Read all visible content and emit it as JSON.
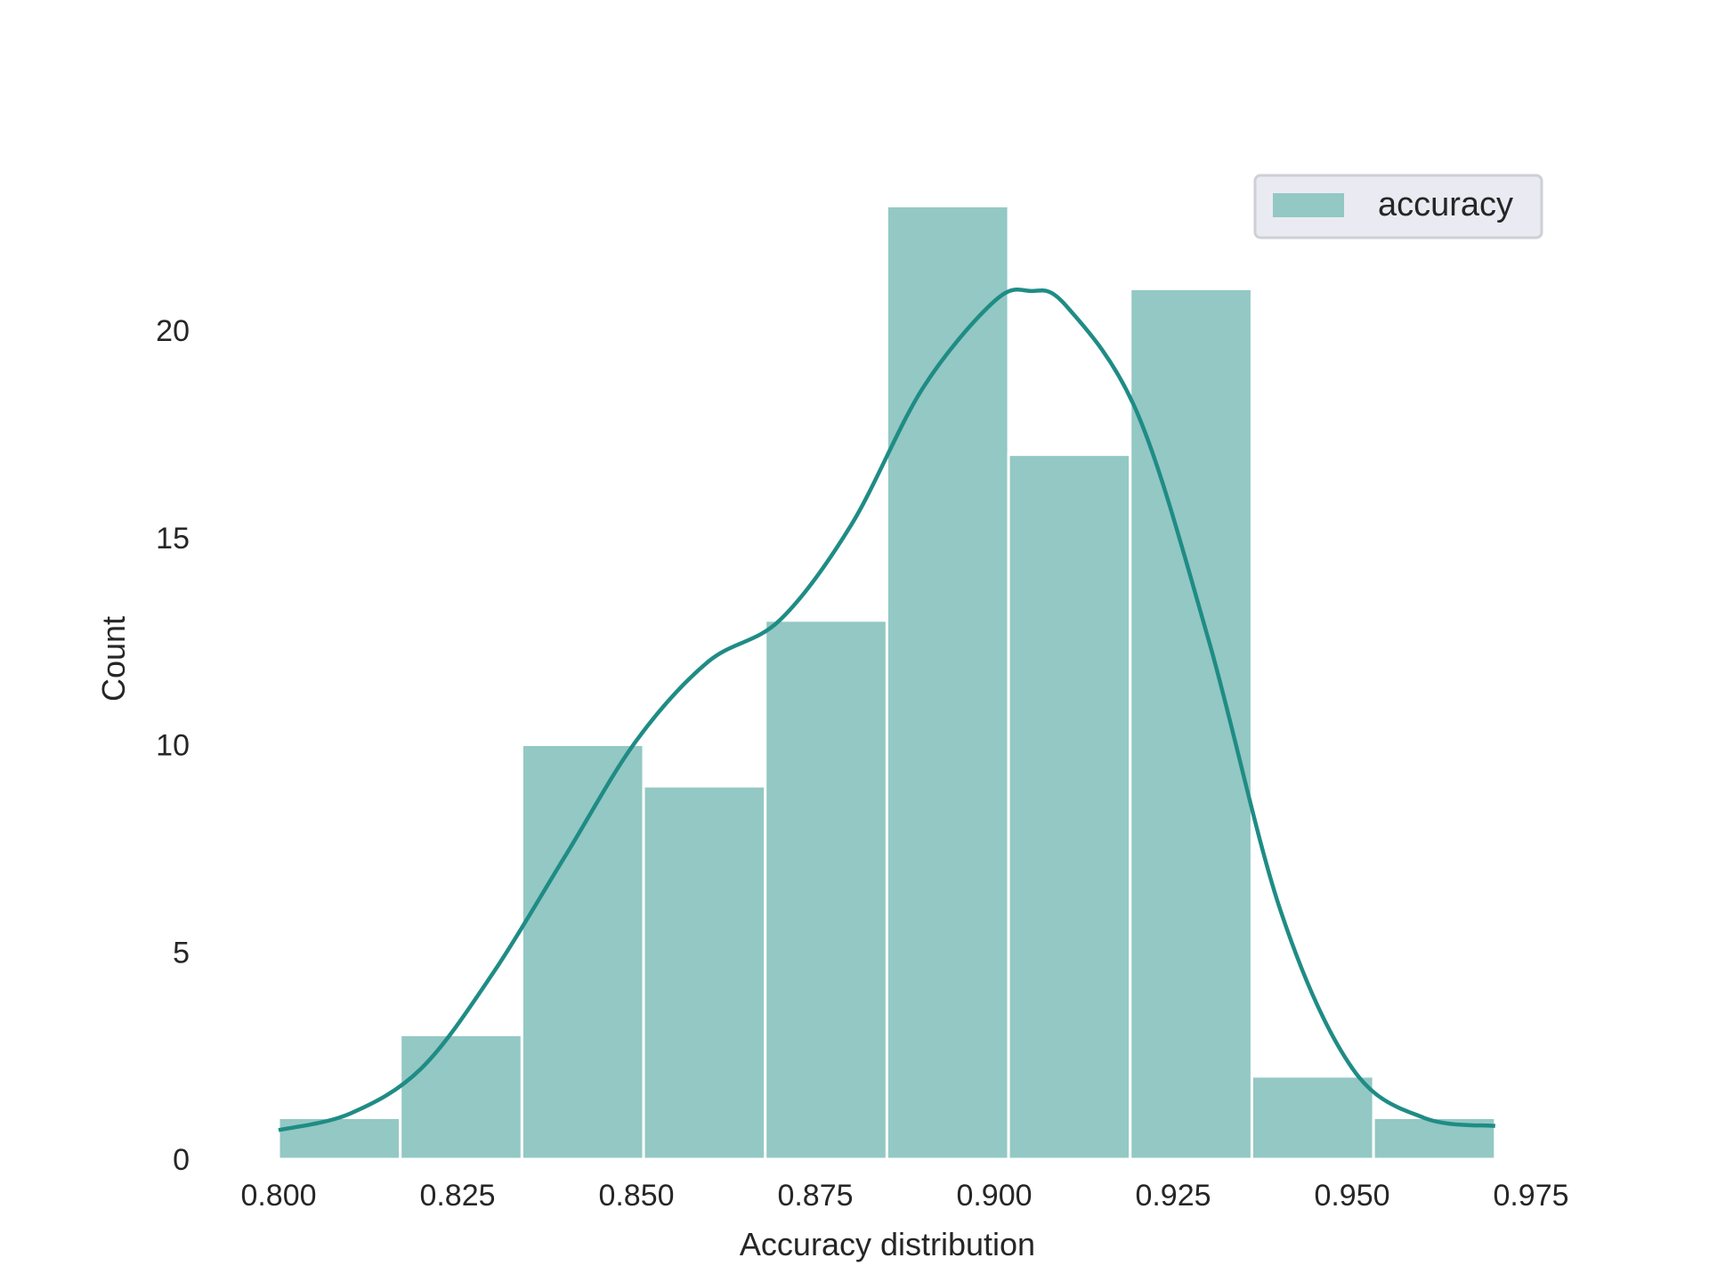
{
  "chart_data": {
    "type": "bar",
    "histogram": true,
    "xlabel": "Accuracy distribution",
    "ylabel": "Count",
    "xlim": [
      0.8,
      0.97
    ],
    "ylim": [
      0,
      24
    ],
    "x_ticks": [
      "0.800",
      "0.825",
      "0.850",
      "0.875",
      "0.900",
      "0.925",
      "0.950",
      "0.975"
    ],
    "y_ticks": [
      "0",
      "5",
      "10",
      "15",
      "20"
    ],
    "grid": false,
    "legend": {
      "position": "top-right",
      "entries": [
        "accuracy"
      ]
    },
    "bin_edges": [
      0.8,
      0.817,
      0.834,
      0.851,
      0.868,
      0.885,
      0.902,
      0.919,
      0.936,
      0.953,
      0.97
    ],
    "series": [
      {
        "name": "accuracy",
        "values": [
          1,
          3,
          10,
          9,
          13,
          23,
          17,
          21,
          2,
          1
        ]
      }
    ],
    "kde": {
      "x": [
        0.8,
        0.81,
        0.82,
        0.83,
        0.84,
        0.85,
        0.86,
        0.87,
        0.88,
        0.89,
        0.9,
        0.905,
        0.91,
        0.92,
        0.93,
        0.94,
        0.95,
        0.96,
        0.97
      ],
      "y": [
        0.7,
        1.1,
        2.2,
        4.5,
        7.3,
        10.1,
        12.0,
        13.0,
        15.3,
        18.6,
        20.7,
        20.95,
        20.6,
        18.0,
        12.5,
        6.0,
        2.2,
        1.0,
        0.8
      ]
    },
    "colors": {
      "bar": "#93c8c4",
      "kde": "#1f8c85",
      "legend_bg": "#eaeaf2"
    }
  }
}
